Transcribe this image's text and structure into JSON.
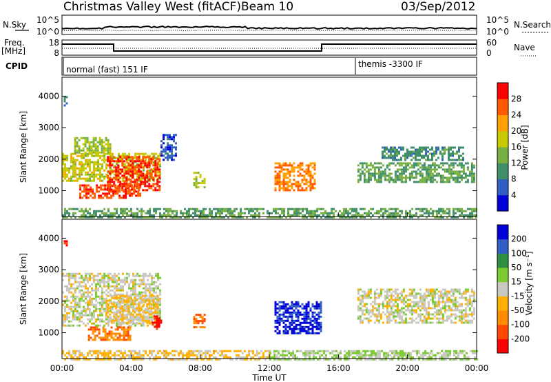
{
  "header": {
    "station": "Christmas Valley West (fitACF)",
    "beam": "Beam 10",
    "date": "03/Sep/2012"
  },
  "side_labels": {
    "nsky": "N.Sky",
    "nsearch": "N.Search",
    "freq_line1": "Freq.",
    "freq_line2": "[MHz]",
    "nave": "Nave",
    "cpid": "CPID"
  },
  "noise_panel": {
    "left_ticks": [
      "10^5",
      "10^0"
    ],
    "right_ticks": [
      "10^5",
      "10^0"
    ]
  },
  "freq_panel": {
    "left_ticks": [
      "18",
      "8"
    ],
    "right_ticks": [
      "60",
      "0"
    ]
  },
  "cpid_panel": {
    "segments": [
      {
        "label": "normal (fast) 151 IF",
        "start_hour": 0
      },
      {
        "label": "themis -3300 IF",
        "start_hour": 17
      }
    ]
  },
  "chart_data": [
    {
      "type": "heatmap",
      "panel": "power",
      "xlabel": "",
      "ylabel": "Slant Range [km]",
      "x_range_hours": [
        0,
        24
      ],
      "ylim": [
        180,
        4600
      ],
      "yticks": [
        1000,
        2000,
        3000,
        4000
      ],
      "colorbar": {
        "label": "Power [dB]",
        "range": [
          0,
          32
        ],
        "ticks": [
          4,
          8,
          12,
          16,
          20,
          24,
          28
        ],
        "colors": [
          "#0000d8",
          "#2f5fc4",
          "#3f8f6a",
          "#77b040",
          "#c8c800",
          "#ffa000",
          "#ff5a00",
          "#ff0000"
        ]
      },
      "regions": [
        {
          "t": [
            0,
            5.7
          ],
          "r": [
            1300,
            2200
          ],
          "value": 18
        },
        {
          "t": [
            0.7,
            2.8
          ],
          "r": [
            2200,
            2700
          ],
          "value": 16
        },
        {
          "t": [
            2.6,
            5.7
          ],
          "r": [
            1000,
            2100
          ],
          "value": 28
        },
        {
          "t": [
            1.0,
            4.5
          ],
          "r": [
            800,
            1200
          ],
          "value": 27
        },
        {
          "t": [
            5.7,
            6.6
          ],
          "r": [
            2000,
            2800
          ],
          "value": 6
        },
        {
          "t": [
            0.1,
            0.3
          ],
          "r": [
            3700,
            4000
          ],
          "value": 9
        },
        {
          "t": [
            7.6,
            8.2
          ],
          "r": [
            1100,
            1600
          ],
          "value": 16
        },
        {
          "t": [
            12.3,
            14.6
          ],
          "r": [
            1000,
            1900
          ],
          "value": 24
        },
        {
          "t": [
            17.1,
            23.8
          ],
          "r": [
            1300,
            1900
          ],
          "value": 12
        },
        {
          "t": [
            18.5,
            23.2
          ],
          "r": [
            2000,
            2400
          ],
          "value": 10
        },
        {
          "t": [
            0,
            24
          ],
          "r": [
            180,
            450
          ],
          "value": 12
        }
      ]
    },
    {
      "type": "heatmap",
      "panel": "velocity",
      "xlabel": "Time UT",
      "ylabel": "Slant Range [km]",
      "x_range_hours": [
        0,
        24
      ],
      "ylim": [
        180,
        4600
      ],
      "yticks": [
        1000,
        2000,
        3000,
        4000
      ],
      "xticks": [
        "00:00",
        "04:00",
        "08:00",
        "12:00",
        "16:00",
        "20:00",
        "00:00"
      ],
      "colorbar": {
        "label": "Velocity [m s⁻¹]",
        "range": [
          -250,
          250
        ],
        "ticks": [
          -200,
          -100,
          -50,
          -15,
          15,
          50,
          100,
          200
        ],
        "tick_labels": [
          "-200",
          "-100",
          "-50",
          "-15",
          "15",
          "50",
          "100",
          "200"
        ],
        "colors": [
          "#ff0000",
          "#ff4a00",
          "#ff8c00",
          "#ffb000",
          "#c8c8c0",
          "#7acb30",
          "#2f8f40",
          "#2f5fc4",
          "#0000d8"
        ]
      },
      "regions": [
        {
          "t": [
            0,
            5.7
          ],
          "r": [
            1200,
            2900
          ],
          "value": 0
        },
        {
          "t": [
            2.6,
            5.5
          ],
          "r": [
            1300,
            2200
          ],
          "value": -30
        },
        {
          "t": [
            1.5,
            4.0
          ],
          "r": [
            800,
            1200
          ],
          "value": -120
        },
        {
          "t": [
            5.2,
            5.7
          ],
          "r": [
            1150,
            1550
          ],
          "value": -220
        },
        {
          "t": [
            0.1,
            0.3
          ],
          "r": [
            3700,
            4000
          ],
          "value": -200
        },
        {
          "t": [
            7.6,
            8.2
          ],
          "r": [
            1200,
            1600
          ],
          "value": -150
        },
        {
          "t": [
            12.3,
            15.0
          ],
          "r": [
            1000,
            2000
          ],
          "value": 210
        },
        {
          "t": [
            17.1,
            23.8
          ],
          "r": [
            1300,
            2400
          ],
          "value": 0
        },
        {
          "t": [
            0,
            12.0
          ],
          "r": [
            180,
            450
          ],
          "value": -40
        },
        {
          "t": [
            12.0,
            24
          ],
          "r": [
            180,
            450
          ],
          "value": 30
        }
      ]
    }
  ]
}
